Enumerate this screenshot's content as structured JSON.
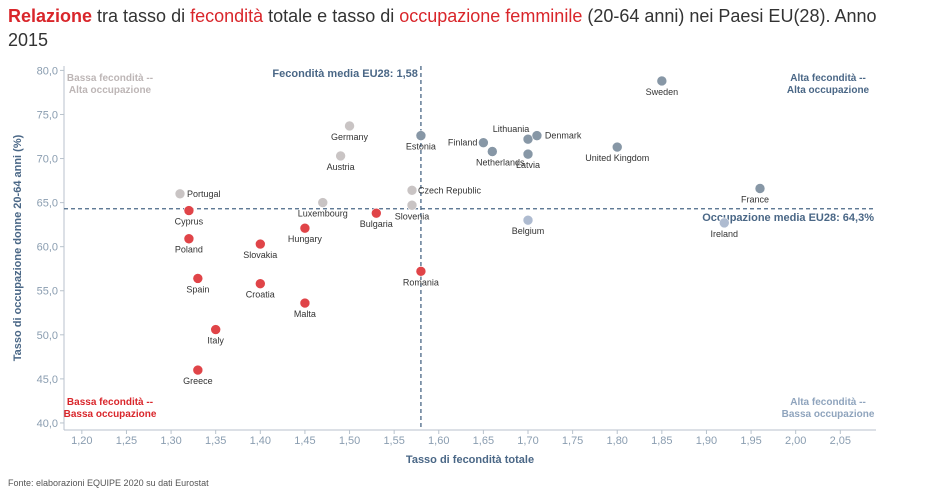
{
  "title": {
    "p1": "Relazione",
    "p2": " tra tasso di ",
    "p3": "fecondità",
    "p4": " totale e tasso di ",
    "p5": "occupazione femminile",
    "p6": " (20-64 anni) nei Paesi EU(28). Anno 2015"
  },
  "source": "Fonte: elaborazioni EQUIPE 2020 su dati Eurostat",
  "colors": {
    "high_high": "#8797a6",
    "low_low": "#e04448",
    "low_high": "#c9c4c4",
    "high_low": "#aebbd0",
    "axis_text": "#8a9db0",
    "axis_title": "#4a6786",
    "ref_line": "#4a6786"
  },
  "chart_data": {
    "type": "scatter",
    "xlabel": "Tasso di fecondità totale",
    "ylabel": "Tasso di occupazione donne 20-64 anni (%)",
    "xlim": [
      1.18,
      2.09
    ],
    "ylim": [
      39.2,
      80.5
    ],
    "x_ticks": [
      "1,20",
      "1,25",
      "1,30",
      "1,35",
      "1,40",
      "1,45",
      "1,50",
      "1,55",
      "1,60",
      "1,65",
      "1,70",
      "1,75",
      "1,80",
      "1,85",
      "1,90",
      "1,95",
      "2,00",
      "2,05"
    ],
    "y_ticks": [
      "40,0",
      "45,0",
      "50,0",
      "55,0",
      "60,0",
      "65,0",
      "70,0",
      "75,0",
      "80,0"
    ],
    "grid": false,
    "reference_lines": {
      "x": {
        "value": 1.58,
        "label": "Fecondità media EU28: 1,58"
      },
      "y": {
        "value": 64.3,
        "label": "Occupazione media EU28: 64,3%"
      }
    },
    "quadrant_labels": {
      "top_left": [
        "Bassa fecondità --",
        "Alta occupazione"
      ],
      "top_right": [
        "Alta fecondità --",
        "Alta occupazione"
      ],
      "bottom_left": [
        "Bassa fecondità --",
        "Bassa occupazione"
      ],
      "bottom_right": [
        "Alta fecondità --",
        "Bassa occupazione"
      ]
    },
    "points": [
      {
        "name": "Sweden",
        "x": 1.85,
        "y": 78.8,
        "group": "high_high"
      },
      {
        "name": "Lithuania",
        "x": 1.7,
        "y": 72.2,
        "group": "high_high"
      },
      {
        "name": "Denmark",
        "x": 1.71,
        "y": 72.6,
        "group": "high_high"
      },
      {
        "name": "Estonia",
        "x": 1.58,
        "y": 72.6,
        "group": "high_high"
      },
      {
        "name": "Finland",
        "x": 1.65,
        "y": 71.8,
        "group": "high_high"
      },
      {
        "name": "Netherlands",
        "x": 1.66,
        "y": 70.8,
        "group": "high_high"
      },
      {
        "name": "Latvia",
        "x": 1.7,
        "y": 70.5,
        "group": "high_high"
      },
      {
        "name": "United Kingdom",
        "x": 1.8,
        "y": 71.3,
        "group": "high_high"
      },
      {
        "name": "France",
        "x": 1.96,
        "y": 66.6,
        "group": "high_high"
      },
      {
        "name": "Ireland",
        "x": 1.92,
        "y": 62.7,
        "group": "high_low"
      },
      {
        "name": "Belgium",
        "x": 1.7,
        "y": 63.0,
        "group": "high_low"
      },
      {
        "name": "Germany",
        "x": 1.5,
        "y": 73.7,
        "group": "low_high"
      },
      {
        "name": "Austria",
        "x": 1.49,
        "y": 70.3,
        "group": "low_high"
      },
      {
        "name": "Czech Republic",
        "x": 1.57,
        "y": 66.4,
        "group": "low_high"
      },
      {
        "name": "Slovenia",
        "x": 1.57,
        "y": 64.7,
        "group": "low_high"
      },
      {
        "name": "Luxembourg",
        "x": 1.47,
        "y": 65.0,
        "group": "low_high"
      },
      {
        "name": "Portugal",
        "x": 1.31,
        "y": 66.0,
        "group": "low_high"
      },
      {
        "name": "Cyprus",
        "x": 1.32,
        "y": 64.1,
        "group": "low_low"
      },
      {
        "name": "Bulgaria",
        "x": 1.53,
        "y": 63.8,
        "group": "low_low"
      },
      {
        "name": "Hungary",
        "x": 1.45,
        "y": 62.1,
        "group": "low_low"
      },
      {
        "name": "Poland",
        "x": 1.32,
        "y": 60.9,
        "group": "low_low"
      },
      {
        "name": "Slovakia",
        "x": 1.4,
        "y": 60.3,
        "group": "low_low"
      },
      {
        "name": "Romania",
        "x": 1.58,
        "y": 57.2,
        "group": "low_low"
      },
      {
        "name": "Spain",
        "x": 1.33,
        "y": 56.4,
        "group": "low_low"
      },
      {
        "name": "Croatia",
        "x": 1.4,
        "y": 55.8,
        "group": "low_low"
      },
      {
        "name": "Malta",
        "x": 1.45,
        "y": 53.6,
        "group": "low_low"
      },
      {
        "name": "Italy",
        "x": 1.35,
        "y": 50.6,
        "group": "low_low"
      },
      {
        "name": "Greece",
        "x": 1.33,
        "y": 46.0,
        "group": "low_low"
      }
    ]
  }
}
